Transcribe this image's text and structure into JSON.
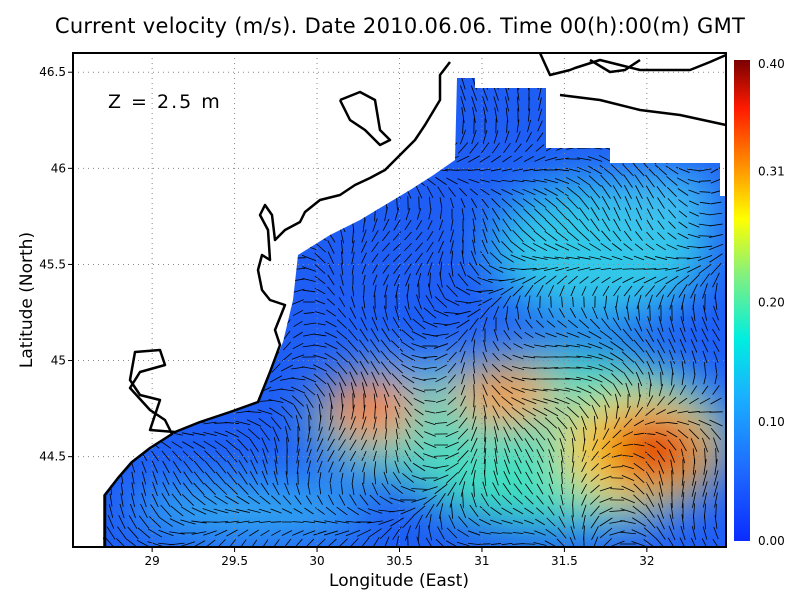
{
  "title": "Current velocity (m/s). Date 2010.06.06. Time 00(h):00(m) GMT",
  "depth_label": "Z = 2.5 m",
  "chart_data": {
    "type": "heatmap",
    "title": "Current velocity (m/s). Date 2010.06.06. Time 00(h):00(m) GMT",
    "xlabel": "Longitude (East)",
    "ylabel": "Latitude (North)",
    "xlim": [
      28.52,
      32.48
    ],
    "ylim": [
      44.03,
      46.6
    ],
    "xticks": [
      29,
      29.5,
      30,
      30.5,
      31,
      31.5,
      32
    ],
    "xtick_labels": [
      "29",
      "29.5",
      "30",
      "30.5",
      "31",
      "31.5",
      "32"
    ],
    "yticks": [
      44.5,
      45,
      45.5,
      46,
      46.5
    ],
    "ytick_labels": [
      "44.5",
      "45",
      "45.5",
      "46",
      "46.5"
    ],
    "grid": true,
    "colorbar": {
      "range": [
        0.0,
        0.4
      ],
      "ticks": [
        0.0,
        0.1,
        0.2,
        0.31,
        0.4
      ],
      "tick_labels": [
        "0.00",
        "0.10",
        "0.20",
        "0.31",
        "0.40"
      ],
      "colormap": [
        "#0a2cff",
        "#1e90ff",
        "#00e5ee",
        "#7cf07c",
        "#ffff00",
        "#ff8c00",
        "#ff2000",
        "#7a0000"
      ],
      "placement": "right"
    },
    "speed_maxima": [
      {
        "lon": 32.0,
        "lat": 44.55,
        "value": 0.38
      },
      {
        "lon": 30.3,
        "lat": 44.75,
        "value": 0.34
      },
      {
        "lon": 31.1,
        "lat": 44.8,
        "value": 0.33
      }
    ],
    "vectors": "current direction arrows over sea area"
  }
}
